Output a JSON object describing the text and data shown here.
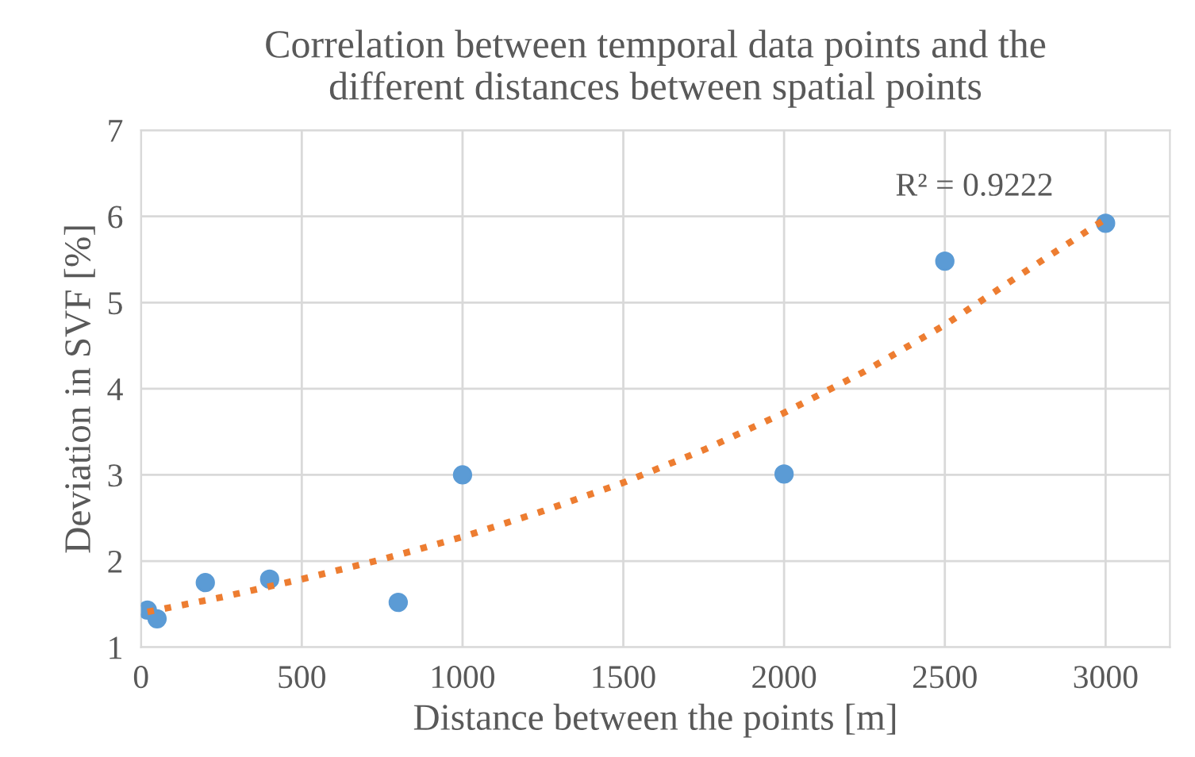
{
  "chart_data": {
    "type": "scatter",
    "title": "Correlation between temporal data points and the\ndifferent distances between spatial points",
    "xlabel": "Distance between the points [m]",
    "ylabel": "Deviation in SVF [%]",
    "series": [
      {
        "color": "#5b9bd5",
        "marker": "circle",
        "x": [
          20,
          50,
          200,
          400,
          800,
          1000,
          2000,
          2500,
          3000
        ],
        "values": [
          1.43,
          1.33,
          1.75,
          1.79,
          1.52,
          3.0,
          3.01,
          5.48,
          5.92
        ]
      },
      {
        "type": "line",
        "color": "#ed7d31",
        "line_style": "dotted",
        "marker": "none",
        "x": [
          20,
          250,
          500,
          750,
          1000,
          1250,
          1500,
          1750,
          2000,
          2250,
          2500,
          2750,
          3000
        ],
        "values": [
          1.41,
          1.58,
          1.79,
          2.02,
          2.28,
          2.58,
          2.91,
          3.29,
          3.72,
          4.2,
          4.74,
          5.36,
          5.97
        ]
      }
    ],
    "annotations": [
      "R² = 0.9222"
    ],
    "xlim": [
      0,
      3200
    ],
    "xticks": [
      0,
      500,
      1000,
      1500,
      2000,
      2500,
      3000
    ],
    "ylim": [
      1,
      7
    ],
    "yticks": [
      1,
      2,
      3,
      4,
      5,
      6,
      7
    ],
    "grid": true,
    "legend": false
  }
}
